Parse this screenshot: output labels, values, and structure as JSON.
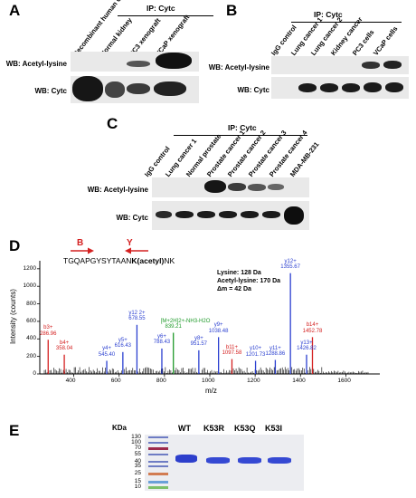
{
  "panels": {
    "A": {
      "label": "A",
      "ip_title": "IP: Cytc",
      "lanes": [
        "Recombinant human Cytc",
        "Normal kidney",
        "PC3 xenograft",
        "VCaP xenograft"
      ],
      "rows": [
        "WB: Acetyl-lysine",
        "WB: Cytc"
      ]
    },
    "B": {
      "label": "B",
      "ip_title": "IP: Cytc",
      "lanes": [
        "IgG control",
        "Lung cancer 1",
        "Lung cancer 2",
        "Kidney cancer",
        "PC3 cells",
        "VCaP cells"
      ],
      "rows": [
        "WB: Acetyl-lysine",
        "WB: Cytc"
      ]
    },
    "C": {
      "label": "C",
      "ip_title": "IP: Cytc",
      "lanes": [
        "IgG control",
        "Lung cancer 1",
        "Normal prostate",
        "Prostate cancer 1",
        "Prostate cancer 2",
        "Prostate cancer 3",
        "Prostate cancer 4",
        "MDA-MB-231"
      ],
      "rows": [
        "WB: Acetyl-lysine",
        "WB: Cytc"
      ]
    },
    "D": {
      "label": "D",
      "peptide_prefix": "TGQAPGYSYTAAN",
      "peptide_mod": "K(acetyl)",
      "peptide_suffix": "NK",
      "b_label": "B",
      "y_label": "Y",
      "note1": "Lysine: 128 Da",
      "note2": "Acetyl-lysine: 170 Da",
      "note3": "Δm = 42 Da",
      "ylabel": "Intensity (counts)",
      "xlabel": "m/z",
      "y_ticks": [
        "1200",
        "1000",
        "800",
        "600",
        "400",
        "200",
        "0"
      ],
      "x_ticks": [
        "400",
        "600",
        "800",
        "1000",
        "1200",
        "1400",
        "1600"
      ],
      "colors": {
        "b_ion": "#d42020",
        "y_ion": "#2a3fd0",
        "precursor": "#1f9a2a",
        "other": "#000000"
      }
    },
    "E": {
      "label": "E",
      "kda_label": "KDa",
      "markers": [
        "130",
        "100",
        "70",
        "55",
        "40",
        "35",
        "25",
        "15",
        "10"
      ],
      "lanes": [
        "WT",
        "K53R",
        "K53Q",
        "K53I"
      ]
    }
  },
  "chart_data": {
    "type": "bar",
    "title": "",
    "xlabel": "m/z",
    "ylabel": "Intensity (counts)",
    "xlim": [
      250,
      1750
    ],
    "ylim": [
      0,
      1250
    ],
    "peaks": [
      {
        "mz": 286.96,
        "intensity": 390,
        "label": "b3+",
        "value": "286.96",
        "kind": "b"
      },
      {
        "mz": 358.04,
        "intensity": 220,
        "label": "b4+",
        "value": "358.04",
        "kind": "b"
      },
      {
        "mz": 545.4,
        "intensity": 150,
        "label": "y4+",
        "value": "545.40",
        "kind": "y"
      },
      {
        "mz": 616.43,
        "intensity": 250,
        "label": "y5+",
        "value": "616.43",
        "kind": "y"
      },
      {
        "mz": 678.55,
        "intensity": 560,
        "label": "y12 2+",
        "value": "678.55",
        "kind": "y"
      },
      {
        "mz": 788.43,
        "intensity": 290,
        "label": "y6+",
        "value": "788.43",
        "kind": "y"
      },
      {
        "mz": 839.21,
        "intensity": 470,
        "label": "[M+2H]2+-NH3-H2O",
        "value": "839.21",
        "kind": "p"
      },
      {
        "mz": 951.57,
        "intensity": 270,
        "label": "y8+",
        "value": "951.57",
        "kind": "y"
      },
      {
        "mz": 1038.48,
        "intensity": 420,
        "label": "y9+",
        "value": "1038.48",
        "kind": "y"
      },
      {
        "mz": 1097.58,
        "intensity": 170,
        "label": "b11+",
        "value": "1097.58",
        "kind": "b"
      },
      {
        "mz": 1201.73,
        "intensity": 150,
        "label": "y10+",
        "value": "1201.73",
        "kind": "y"
      },
      {
        "mz": 1288.86,
        "intensity": 160,
        "label": "y11+",
        "value": "1288.86",
        "kind": "y"
      },
      {
        "mz": 1355.67,
        "intensity": 1150,
        "label": "y12+",
        "value": "1355.67",
        "kind": "y"
      },
      {
        "mz": 1426.82,
        "intensity": 220,
        "label": "y13+",
        "value": "1426.82",
        "kind": "y"
      },
      {
        "mz": 1452.78,
        "intensity": 420,
        "label": "b14+",
        "value": "1452.78",
        "kind": "b"
      }
    ]
  }
}
